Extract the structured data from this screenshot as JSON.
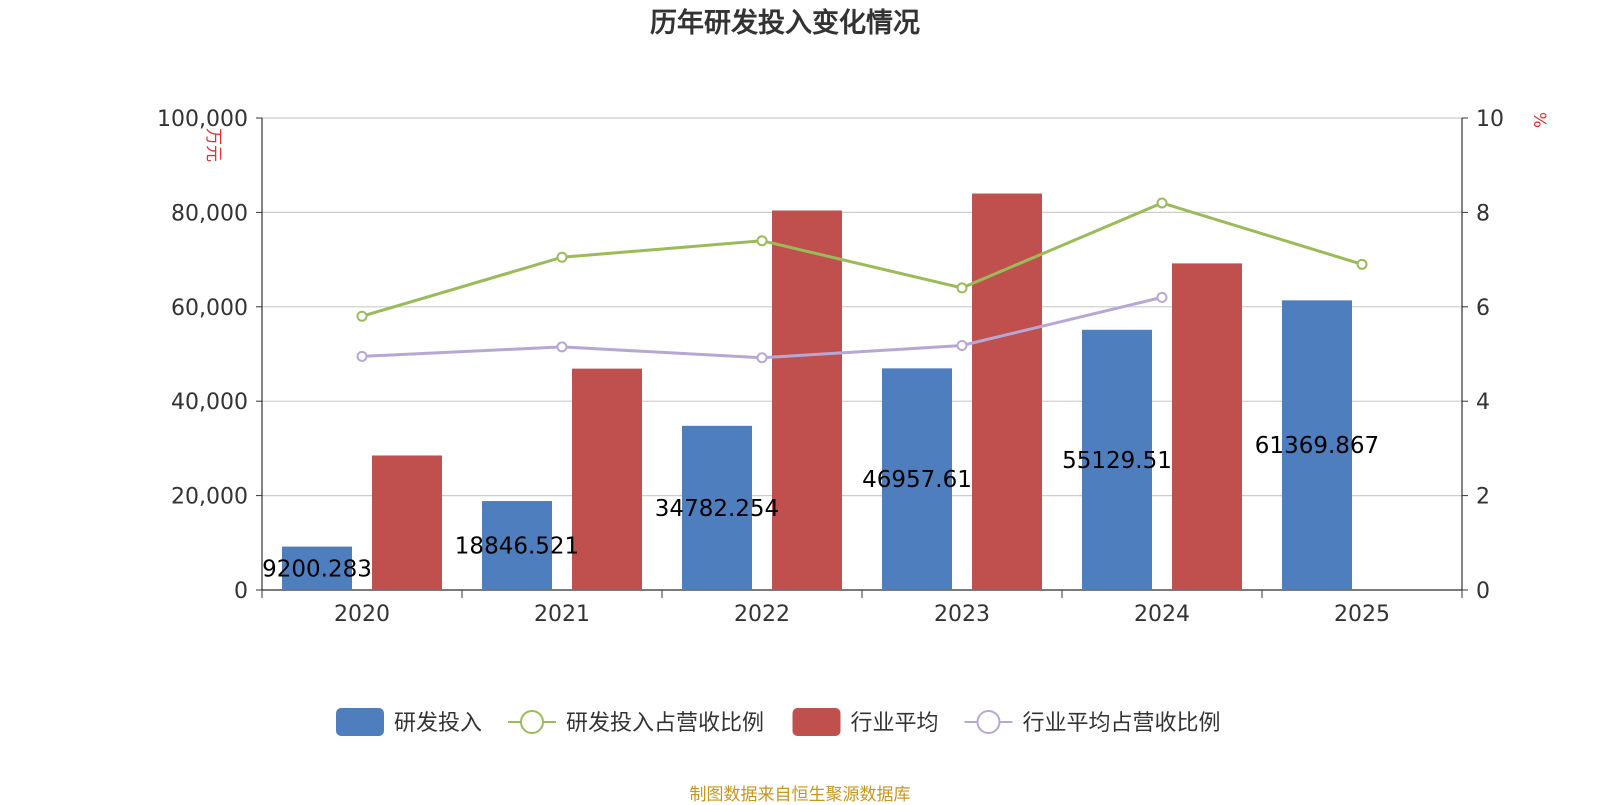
{
  "chart_data": {
    "type": "bar",
    "title": "历年研发投入变化情况",
    "categories": [
      "2020",
      "2021",
      "2022",
      "2023",
      "2024",
      "2025"
    ],
    "y_left": {
      "label": "万元",
      "ylim": [
        0,
        100000
      ],
      "ticks": [
        "0",
        "20,000",
        "40,000",
        "60,000",
        "80,000",
        "100,000"
      ],
      "tick_values": [
        0,
        20000,
        40000,
        60000,
        80000,
        100000
      ]
    },
    "y_right": {
      "label": "%",
      "ylim": [
        0,
        10
      ],
      "ticks": [
        "0",
        "2",
        "4",
        "6",
        "8",
        "10"
      ],
      "tick_values": [
        0,
        2,
        4,
        6,
        8,
        10
      ]
    },
    "series": [
      {
        "name": "研发投入",
        "kind": "bar",
        "axis": "left",
        "color": "#4f7ebf",
        "values": [
          9200.283,
          18846.521,
          34782.254,
          46957.61,
          55129.51,
          61369.867
        ],
        "labels": [
          "9200.283",
          "18846.521",
          "34782.254",
          "46957.61",
          "55129.51",
          "61369.867"
        ]
      },
      {
        "name": "研发投入占营收比例",
        "kind": "line",
        "axis": "right",
        "color": "#9bbb59",
        "values": [
          5.8,
          7.05,
          7.4,
          6.4,
          8.2,
          6.9
        ]
      },
      {
        "name": "行业平均",
        "kind": "bar",
        "axis": "left",
        "color": "#c0504d",
        "values": [
          28500,
          46900,
          80400,
          84000,
          69200,
          null
        ]
      },
      {
        "name": "行业平均占营收比例",
        "kind": "line",
        "axis": "right",
        "color": "#b7a8d3",
        "values": [
          4.95,
          5.15,
          4.92,
          5.18,
          6.2,
          null
        ]
      }
    ],
    "legend_position": "bottom",
    "grid": true
  },
  "source_text": "制图数据来自恒生聚源数据库"
}
